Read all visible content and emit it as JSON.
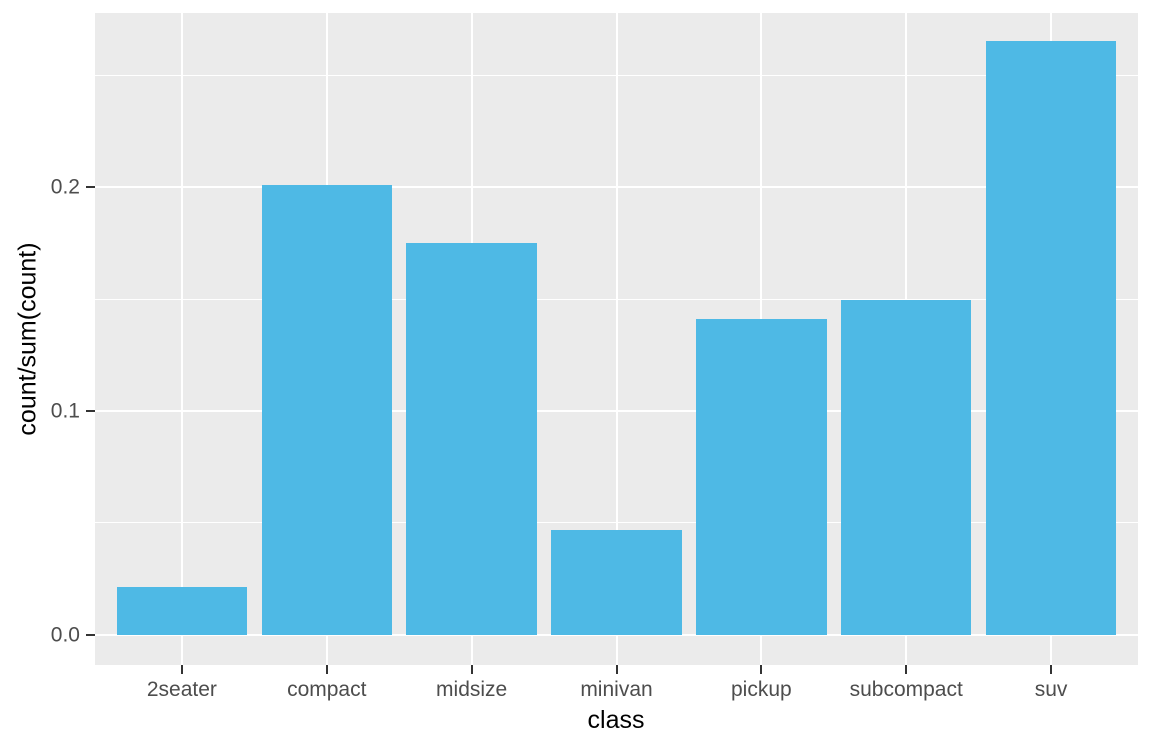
{
  "figure": {
    "background": "#FFFFFF"
  },
  "panel": {
    "background": "#EBEBEB",
    "gridline_color": "#FFFFFF"
  },
  "axis": {
    "x_title": "class",
    "y_title": "count/sum(count)",
    "tick_mark_color": "#333333",
    "tick_label_color": "#4D4D4D",
    "title_color": "#000000"
  },
  "chart_data": {
    "type": "bar",
    "title": "",
    "xlabel": "class",
    "ylabel": "count/sum(count)",
    "categories": [
      "2seater",
      "compact",
      "midsize",
      "minivan",
      "pickup",
      "subcompact",
      "suv"
    ],
    "values": [
      0.0214,
      0.2009,
      0.1752,
      0.047,
      0.141,
      0.1496,
      0.265
    ],
    "bar_color": "#4EB9E5",
    "bar_width_fraction": 0.9,
    "ylim": [
      -0.0134,
      0.2777
    ],
    "y_major_ticks": [
      0.0,
      0.1,
      0.2
    ],
    "y_major_tick_labels": [
      "0.0",
      "0.1",
      "0.2"
    ],
    "y_minor_ticks": [
      0.05,
      0.15,
      0.25
    ],
    "grid": true,
    "legend": false
  }
}
